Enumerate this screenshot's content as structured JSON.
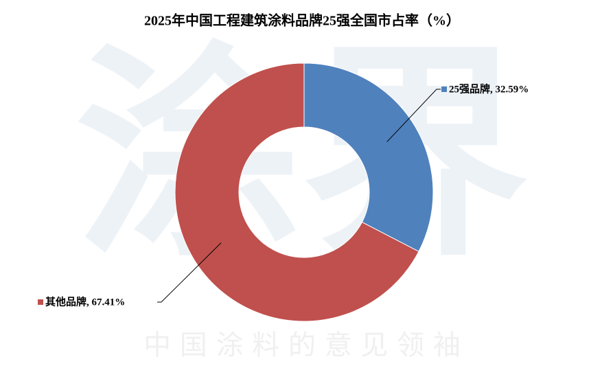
{
  "chart_data": {
    "type": "donut",
    "title": "2025年中国工程建筑涂料品牌25强全国市占率（%）",
    "values": [
      32.59,
      67.41
    ],
    "value_labels": [
      "25强品牌, 32.59%",
      "其他品牌, 67.41%"
    ],
    "colors": [
      "#4f81bd",
      "#c0504d"
    ]
  },
  "watermark": {
    "logo": "涂界",
    "slogan": "中 国 涂 料 的 意 见 领 袖"
  }
}
